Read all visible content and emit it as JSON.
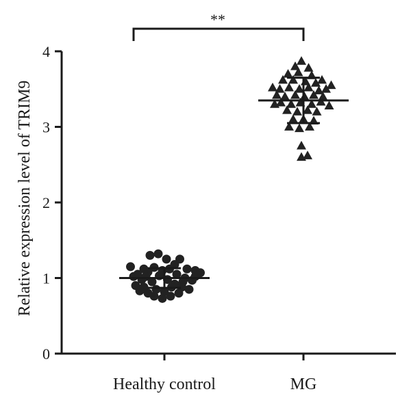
{
  "chart_data": {
    "type": "scatter",
    "ylabel": "Relative expression level of TRIM9",
    "ylim": [
      0,
      4
    ],
    "yticks": [
      "0",
      "1",
      "2",
      "3",
      "4"
    ],
    "categories": [
      "Healthy control",
      "MG"
    ],
    "significance": "**",
    "colors": {
      "marks": "#222222",
      "axes": "#1a1a1a"
    },
    "series": [
      {
        "marker": "circle",
        "mean": 1.0,
        "sd": 0.13,
        "points": [
          {
            "x": -0.33,
            "y": 1.15
          },
          {
            "x": -0.26,
            "y": 1.05
          },
          {
            "x": -0.2,
            "y": 1.12
          },
          {
            "x": -0.14,
            "y": 1.3
          },
          {
            "x": -0.06,
            "y": 1.32
          },
          {
            "x": 0.02,
            "y": 1.25
          },
          {
            "x": 0.1,
            "y": 1.18
          },
          {
            "x": 0.15,
            "y": 1.25
          },
          {
            "x": 0.22,
            "y": 1.12
          },
          {
            "x": 0.3,
            "y": 1.1
          },
          {
            "x": 0.35,
            "y": 1.07
          },
          {
            "x": -0.3,
            "y": 1.02
          },
          {
            "x": -0.22,
            "y": 0.98
          },
          {
            "x": -0.16,
            "y": 1.08
          },
          {
            "x": -0.1,
            "y": 1.14
          },
          {
            "x": -0.02,
            "y": 1.1
          },
          {
            "x": 0.05,
            "y": 1.12
          },
          {
            "x": 0.12,
            "y": 1.05
          },
          {
            "x": 0.2,
            "y": 1.0
          },
          {
            "x": 0.27,
            "y": 0.97
          },
          {
            "x": -0.28,
            "y": 0.9
          },
          {
            "x": -0.2,
            "y": 0.88
          },
          {
            "x": -0.12,
            "y": 0.95
          },
          {
            "x": -0.05,
            "y": 1.03
          },
          {
            "x": 0.03,
            "y": 0.98
          },
          {
            "x": 0.1,
            "y": 0.92
          },
          {
            "x": 0.17,
            "y": 0.88
          },
          {
            "x": 0.24,
            "y": 0.85
          },
          {
            "x": -0.24,
            "y": 0.83
          },
          {
            "x": -0.16,
            "y": 0.8
          },
          {
            "x": -0.08,
            "y": 0.85
          },
          {
            "x": 0.0,
            "y": 0.82
          },
          {
            "x": 0.07,
            "y": 0.88
          },
          {
            "x": 0.14,
            "y": 0.8
          },
          {
            "x": -0.1,
            "y": 0.76
          },
          {
            "x": -0.02,
            "y": 0.73
          },
          {
            "x": 0.06,
            "y": 0.76
          },
          {
            "x": 0.18,
            "y": 0.95
          },
          {
            "x": -0.18,
            "y": 1.02
          },
          {
            "x": 0.3,
            "y": 1.02
          }
        ]
      },
      {
        "marker": "triangle",
        "mean": 3.35,
        "sd": 0.3,
        "points": [
          {
            "x": -0.02,
            "y": 3.87
          },
          {
            "x": -0.08,
            "y": 3.8
          },
          {
            "x": 0.05,
            "y": 3.78
          },
          {
            "x": -0.15,
            "y": 3.7
          },
          {
            "x": -0.05,
            "y": 3.72
          },
          {
            "x": 0.08,
            "y": 3.68
          },
          {
            "x": 0.18,
            "y": 3.62
          },
          {
            "x": -0.2,
            "y": 3.62
          },
          {
            "x": -0.1,
            "y": 3.62
          },
          {
            "x": 0.02,
            "y": 3.6
          },
          {
            "x": 0.12,
            "y": 3.58
          },
          {
            "x": 0.27,
            "y": 3.55
          },
          {
            "x": -0.3,
            "y": 3.52
          },
          {
            "x": -0.23,
            "y": 3.5
          },
          {
            "x": -0.14,
            "y": 3.52
          },
          {
            "x": -0.04,
            "y": 3.5
          },
          {
            "x": 0.05,
            "y": 3.52
          },
          {
            "x": 0.15,
            "y": 3.48
          },
          {
            "x": 0.22,
            "y": 3.5
          },
          {
            "x": -0.26,
            "y": 3.42
          },
          {
            "x": -0.18,
            "y": 3.4
          },
          {
            "x": -0.08,
            "y": 3.42
          },
          {
            "x": 0.01,
            "y": 3.4
          },
          {
            "x": 0.1,
            "y": 3.42
          },
          {
            "x": 0.19,
            "y": 3.4
          },
          {
            "x": -0.22,
            "y": 3.32
          },
          {
            "x": -0.12,
            "y": 3.3
          },
          {
            "x": -0.03,
            "y": 3.32
          },
          {
            "x": 0.08,
            "y": 3.3
          },
          {
            "x": 0.17,
            "y": 3.33
          },
          {
            "x": -0.16,
            "y": 3.22
          },
          {
            "x": -0.06,
            "y": 3.2
          },
          {
            "x": 0.04,
            "y": 3.22
          },
          {
            "x": 0.13,
            "y": 3.2
          },
          {
            "x": -0.1,
            "y": 3.1
          },
          {
            "x": 0.0,
            "y": 3.1
          },
          {
            "x": 0.1,
            "y": 3.08
          },
          {
            "x": -0.14,
            "y": 3.0
          },
          {
            "x": -0.04,
            "y": 2.98
          },
          {
            "x": 0.06,
            "y": 3.0
          },
          {
            "x": -0.02,
            "y": 2.75
          },
          {
            "x": -0.02,
            "y": 2.6
          },
          {
            "x": 0.04,
            "y": 2.62
          },
          {
            "x": 0.25,
            "y": 3.28
          },
          {
            "x": -0.28,
            "y": 3.3
          }
        ]
      }
    ]
  }
}
